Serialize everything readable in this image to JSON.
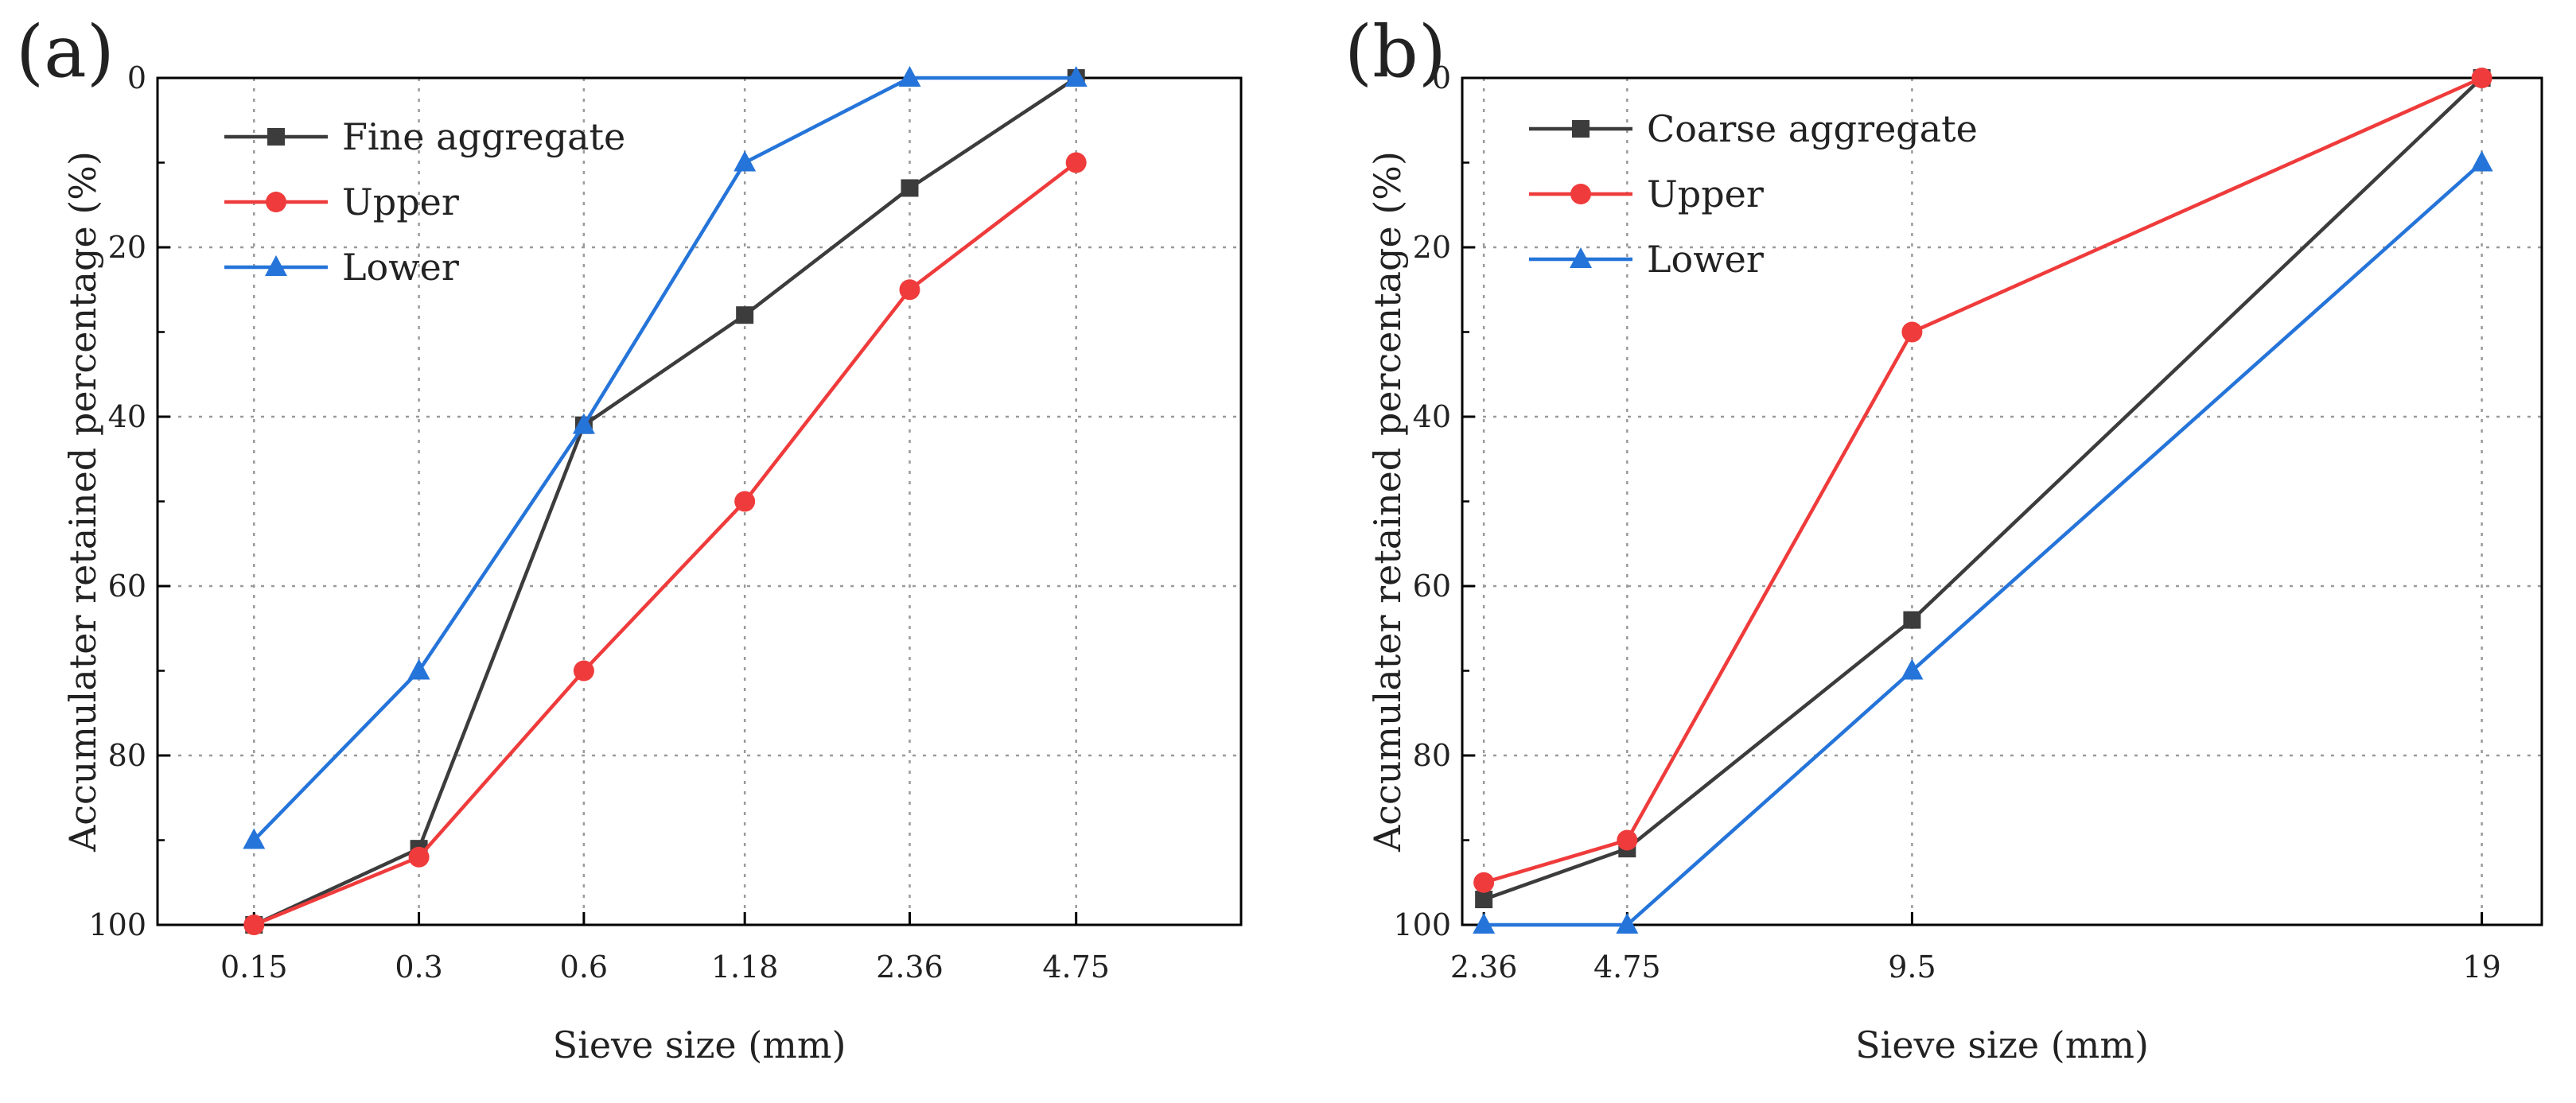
{
  "colors": {
    "black": "#3c3c3c",
    "red": "#ef3b3b",
    "blue": "#2574d9",
    "grid": "#9a9a9a"
  },
  "chart_data": [
    {
      "panel_label": "(a)",
      "type": "line",
      "x_scale": "log",
      "x": [
        0.15,
        0.3,
        0.6,
        1.18,
        2.36,
        4.75
      ],
      "x_tick_labels": [
        "0.15",
        "0.3",
        "0.6",
        "1.18",
        "2.36",
        "4.75"
      ],
      "xlim": [
        0.1,
        9.5
      ],
      "ylim": [
        0,
        100
      ],
      "y_inverted": true,
      "y_ticks": [
        0,
        20,
        40,
        60,
        80,
        100
      ],
      "y_tick_labels": [
        "0",
        "20",
        "40",
        "60",
        "80",
        "100"
      ],
      "xlabel": "Sieve size (mm)",
      "ylabel": "Accumulater retained percentage (%)",
      "grid": true,
      "legend_position": "top-left",
      "series": [
        {
          "name": "Fine aggregate",
          "color": "#3c3c3c",
          "marker": "square",
          "values": [
            100,
            91,
            41,
            28,
            13,
            0
          ]
        },
        {
          "name": "Upper",
          "color": "#ef3b3b",
          "marker": "circle",
          "values": [
            100,
            92,
            70,
            50,
            25,
            10
          ]
        },
        {
          "name": "Lower",
          "color": "#2574d9",
          "marker": "triangle",
          "values": [
            90,
            70,
            41,
            10,
            0,
            0
          ]
        }
      ]
    },
    {
      "panel_label": "(b)",
      "type": "line",
      "x_scale": "linear",
      "x": [
        2.36,
        4.75,
        9.5,
        19
      ],
      "x_tick_labels": [
        "2.36",
        "4.75",
        "9.5",
        "19"
      ],
      "xlim": [
        2,
        20
      ],
      "ylim": [
        0,
        100
      ],
      "y_inverted": true,
      "y_ticks": [
        0,
        20,
        40,
        60,
        80,
        100
      ],
      "y_tick_labels": [
        "0",
        "20",
        "40",
        "60",
        "80",
        "100"
      ],
      "xlabel": "Sieve size (mm)",
      "ylabel": "Accumulater retained percentage (%)",
      "grid": true,
      "legend_position": "top-left",
      "series": [
        {
          "name": "Coarse aggregate",
          "color": "#3c3c3c",
          "marker": "square",
          "values": [
            97,
            91,
            64,
            0
          ]
        },
        {
          "name": "Upper",
          "color": "#ef3b3b",
          "marker": "circle",
          "values": [
            95,
            90,
            30,
            0
          ]
        },
        {
          "name": "Lower",
          "color": "#2574d9",
          "marker": "triangle",
          "values": [
            100,
            100,
            70,
            10
          ]
        }
      ]
    }
  ]
}
